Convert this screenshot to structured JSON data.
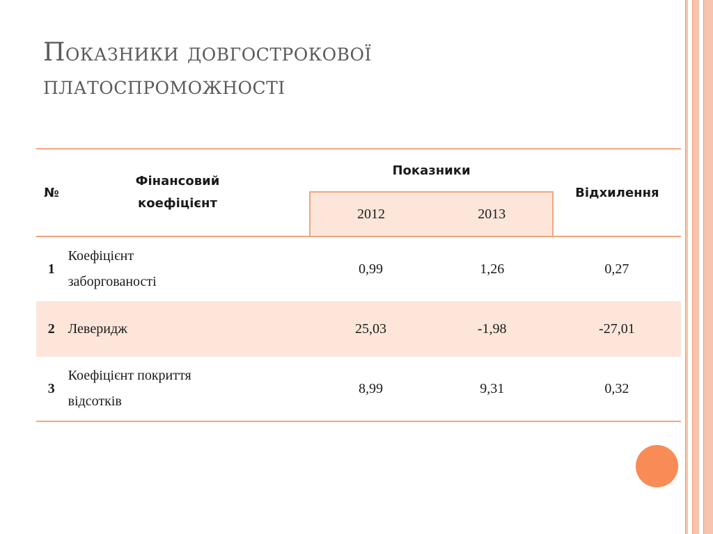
{
  "slide": {
    "title_line1": "Показники довгострокової",
    "title_line2": "платоспроможності"
  },
  "table": {
    "headers": {
      "num": "№",
      "name_line1": "Фінансовий",
      "name_line2": "коефіцієнт",
      "group": "Показники",
      "year1": "2012",
      "year2": "2013",
      "deviation": "Відхилення"
    },
    "rows": [
      {
        "num": "1",
        "name_line1": "Коефіцієнт",
        "name_line2": "заборгованості",
        "y2012": "0,99",
        "y2013": "1,26",
        "deviation": "0,27"
      },
      {
        "num": "2",
        "name_line1": "Левeридж",
        "name_line2": "",
        "y2012": "25,03",
        "y2013": "-1,98",
        "deviation": "-27,01"
      },
      {
        "num": "3",
        "name_line1": "Коефіцієнт покриття",
        "name_line2": "відсотків",
        "y2012": "8,99",
        "y2013": "9,31",
        "deviation": "0,32"
      }
    ]
  },
  "colors": {
    "accent": "#f98b57",
    "rule": "#f2a57f",
    "band": "#fde6d9",
    "stripe": "#f6c4ad"
  }
}
